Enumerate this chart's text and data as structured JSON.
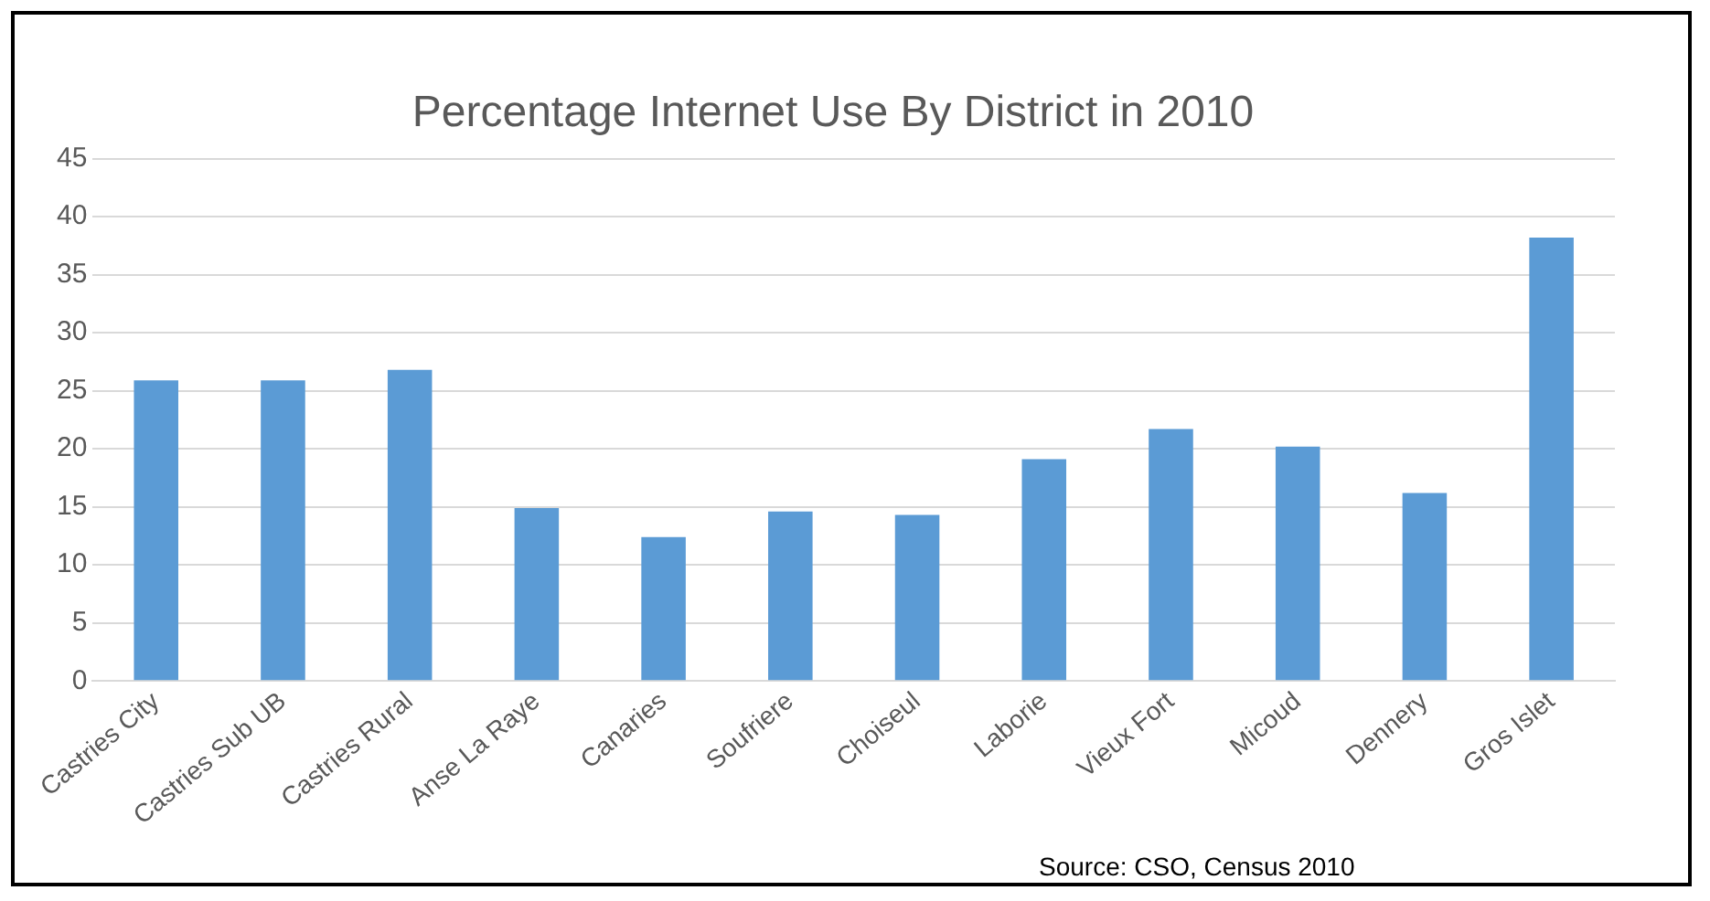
{
  "chart_data": {
    "type": "bar",
    "title": "Percentage Internet Use By District in 2010",
    "categories": [
      "Castries City",
      "Castries Sub UB",
      "Castries Rural",
      "Anse La Raye",
      "Canaries",
      "Soufriere",
      "Choiseul",
      "Laborie",
      "Vieux Fort",
      "Micoud",
      "Dennery",
      "Gros Islet"
    ],
    "values": [
      25.9,
      25.9,
      26.8,
      14.9,
      12.4,
      14.6,
      14.3,
      19.1,
      21.7,
      20.2,
      16.2,
      38.2
    ],
    "color": "#5b9bd5",
    "ylim": [
      0,
      45
    ],
    "yticks": [
      0,
      5,
      10,
      15,
      20,
      25,
      30,
      35,
      40,
      45
    ],
    "grid": "y",
    "annotations": [
      "Source: CSO, Census 2010"
    ]
  }
}
